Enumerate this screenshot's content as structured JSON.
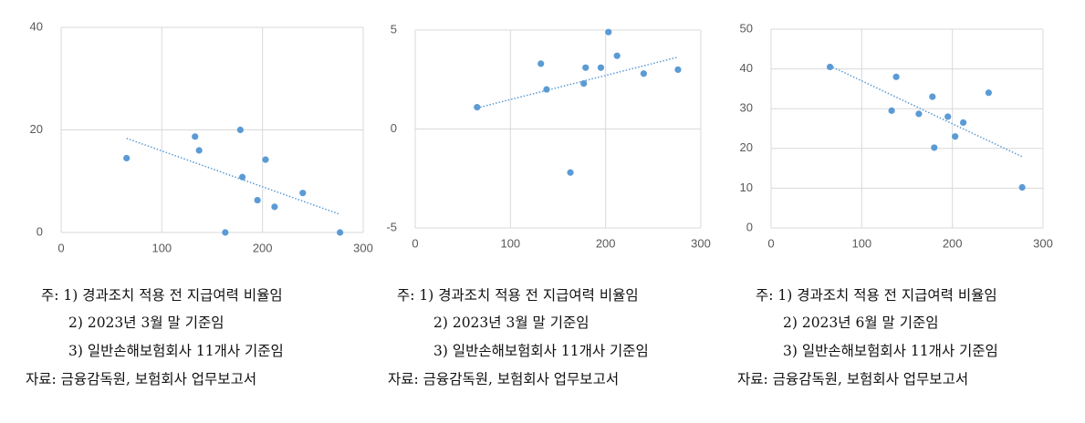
{
  "chart_data": [
    {
      "type": "scatter",
      "color": "#5b9bd5",
      "trendline": true,
      "grid": true,
      "xlim": [
        0,
        300
      ],
      "xticks": [
        0,
        100,
        200,
        300
      ],
      "ylim": [
        0,
        40
      ],
      "yticks": [
        0,
        20,
        40
      ],
      "x": [
        65,
        133,
        137,
        163,
        178,
        180,
        195,
        203,
        212,
        240,
        277
      ],
      "values": [
        14.5,
        18.7,
        16,
        0,
        20,
        10.8,
        6.3,
        14.2,
        5,
        7.7,
        0
      ],
      "notes": [
        "주: 1) 경과조치 적용 전 지급여력 비율임",
        "2) 2023년 3월 말 기준임",
        "3) 일반손해보험회사 11개사 기준임",
        "자료: 금융감독원, 보험회사 업무보고서"
      ]
    },
    {
      "type": "scatter",
      "color": "#5b9bd5",
      "trendline": true,
      "grid": true,
      "xlim": [
        0,
        300
      ],
      "xticks": [
        0,
        100,
        200,
        300
      ],
      "ylim": [
        -5,
        5
      ],
      "yticks": [
        -5,
        0,
        5
      ],
      "x": [
        65,
        132,
        138,
        163,
        177,
        179,
        195,
        203,
        212,
        240,
        276
      ],
      "values": [
        1.1,
        3.3,
        2,
        -2.2,
        2.3,
        3.1,
        3.1,
        4.9,
        3.7,
        2.8,
        3
      ],
      "notes": [
        "주: 1) 경과조치 적용 전 지급여력 비율임",
        "2) 2023년 3월 말 기준임",
        "3) 일반손해보험회사 11개사 기준임",
        "자료: 금융감독원, 보험회사 업무보고서"
      ]
    },
    {
      "type": "scatter",
      "color": "#5b9bd5",
      "trendline": true,
      "grid": true,
      "xlim": [
        0,
        300
      ],
      "xticks": [
        0,
        100,
        200,
        300
      ],
      "ylim": [
        0,
        50
      ],
      "yticks": [
        0,
        10,
        20,
        30,
        40,
        50
      ],
      "x": [
        65,
        133,
        138,
        163,
        178,
        180,
        195,
        203,
        212,
        240,
        277
      ],
      "values": [
        40.5,
        29.5,
        38,
        28.7,
        33,
        20.2,
        28,
        23,
        26.5,
        34,
        10.2
      ],
      "notes": [
        "주: 1) 경과조치 적용 전 지급여력 비율임",
        "2) 2023년 6월 말 기준임",
        "3) 일반손해보험회사 11개사 기준임",
        "자료: 금융감독원, 보험회사 업무보고서"
      ]
    }
  ]
}
